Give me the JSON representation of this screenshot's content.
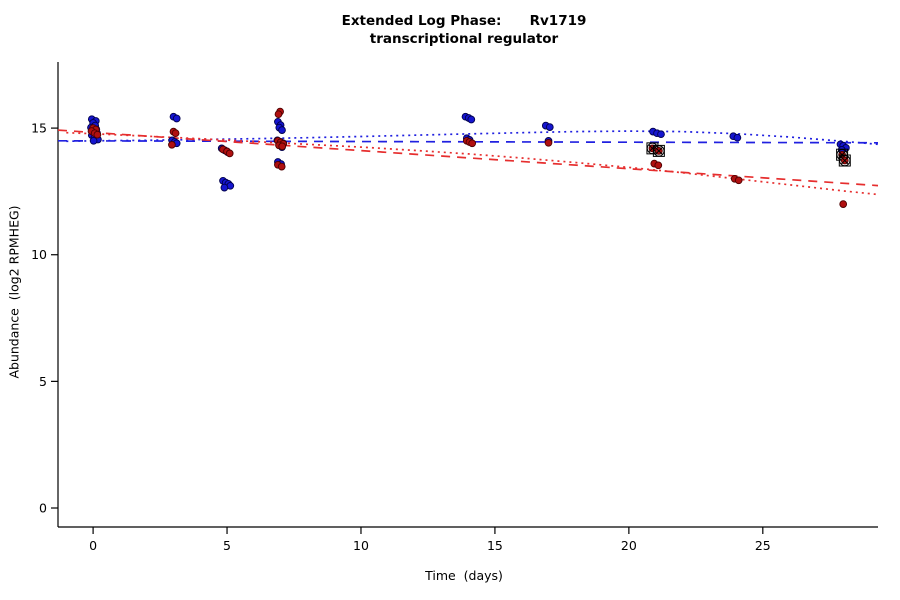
{
  "chart_data": {
    "type": "scatter",
    "title": "Extended Log Phase:      Rv1719",
    "subtitle": "transcriptional regulator",
    "xlabel": "Time  (days)",
    "ylabel": "Abundance  (log2 RPMHEG)",
    "xlim": [
      -1.31,
      29.3
    ],
    "ylim": [
      -0.75,
      17.61
    ],
    "x_ticks": [
      0,
      5,
      10,
      15,
      20,
      25
    ],
    "y_ticks": [
      0,
      5,
      10,
      15
    ],
    "grid": false,
    "legend": "none",
    "colors": {
      "blue_point_fill": "#1515cf",
      "blue_point_stroke": "#00004d",
      "red_point_fill": "#b01010",
      "red_point_stroke": "#4d0000",
      "blue_line": "#2020e0",
      "red_line": "#e62e2e",
      "flag_marker": "#000000"
    },
    "series": [
      {
        "name": "condition-blue",
        "color": "#1515cf",
        "stroke": "#00004d",
        "points": [
          [
            -0.05,
            15.35
          ],
          [
            0.1,
            15.28
          ],
          [
            0,
            15.2
          ],
          [
            0.08,
            15.1
          ],
          [
            -0.08,
            15.02
          ],
          [
            0.12,
            14.95
          ],
          [
            0,
            14.88
          ],
          [
            0.15,
            14.8
          ],
          [
            -0.05,
            14.72
          ],
          [
            0.05,
            14.62
          ],
          [
            0.18,
            14.55
          ],
          [
            0.02,
            14.5
          ],
          [
            3,
            15.45
          ],
          [
            3.12,
            15.38
          ],
          [
            2.95,
            14.52
          ],
          [
            3.05,
            14.45
          ],
          [
            3.12,
            14.4
          ],
          [
            4.8,
            14.2
          ],
          [
            4.92,
            14.12
          ],
          [
            5.02,
            14.05
          ],
          [
            4.85,
            12.92
          ],
          [
            4.95,
            12.85
          ],
          [
            5.05,
            12.8
          ],
          [
            5.12,
            12.72
          ],
          [
            4.9,
            12.65
          ],
          [
            6.9,
            15.25
          ],
          [
            7,
            15.12
          ],
          [
            6.95,
            15.02
          ],
          [
            7.05,
            14.92
          ],
          [
            6.88,
            14.52
          ],
          [
            7,
            14.46
          ],
          [
            7.1,
            14.4
          ],
          [
            6.95,
            14.32
          ],
          [
            7.05,
            14.25
          ],
          [
            6.9,
            13.66
          ],
          [
            7.02,
            13.58
          ],
          [
            13.9,
            15.45
          ],
          [
            14.02,
            15.4
          ],
          [
            14.12,
            15.34
          ],
          [
            13.95,
            14.6
          ],
          [
            14.05,
            14.54
          ],
          [
            16.9,
            15.1
          ],
          [
            17.05,
            15.04
          ],
          [
            17,
            14.5
          ],
          [
            20.9,
            14.86
          ],
          [
            21.05,
            14.8
          ],
          [
            21.2,
            14.76
          ],
          [
            23.9,
            14.68
          ],
          [
            24.05,
            14.62
          ],
          [
            27.9,
            14.36
          ],
          [
            28,
            14.3
          ],
          [
            28.1,
            14.22
          ],
          [
            27.95,
            14.14
          ]
        ]
      },
      {
        "name": "condition-red",
        "color": "#b01010",
        "stroke": "#4d0000",
        "points": [
          [
            0,
            15.0
          ],
          [
            0.1,
            14.94
          ],
          [
            -0.06,
            14.88
          ],
          [
            0.06,
            14.8
          ],
          [
            0.16,
            14.74
          ],
          [
            3,
            14.86
          ],
          [
            3.08,
            14.8
          ],
          [
            2.94,
            14.34
          ],
          [
            4.85,
            14.16
          ],
          [
            5,
            14.08
          ],
          [
            5.1,
            14.0
          ],
          [
            6.98,
            15.65
          ],
          [
            6.92,
            15.55
          ],
          [
            6.9,
            14.5
          ],
          [
            7,
            14.44
          ],
          [
            7.1,
            14.38
          ],
          [
            6.94,
            14.32
          ],
          [
            7.06,
            14.28
          ],
          [
            6.9,
            13.55
          ],
          [
            7.04,
            13.48
          ],
          [
            13.95,
            14.5
          ],
          [
            14.05,
            14.45
          ],
          [
            14.15,
            14.4
          ],
          [
            17,
            14.42
          ],
          [
            20.95,
            13.6
          ],
          [
            21.1,
            13.53
          ],
          [
            23.95,
            13.0
          ],
          [
            24.1,
            12.94
          ],
          [
            28,
            12.0
          ]
        ]
      }
    ],
    "flagged_points": {
      "description": "red points flagged with open square and circled-X outlier markers",
      "points": [
        [
          20.88,
          14.2
        ],
        [
          21.12,
          14.1
        ],
        [
          27.96,
          13.95
        ],
        [
          28.06,
          13.72
        ]
      ]
    },
    "lines": [
      {
        "name": "blue-trend-dashed",
        "style": "dashed",
        "color": "#2020e0",
        "points": [
          [
            -1.31,
            14.5
          ],
          [
            29.3,
            14.42
          ]
        ]
      },
      {
        "name": "blue-trend-dotted",
        "style": "dotted",
        "color": "#2020e0",
        "points": [
          [
            -1,
            14.48
          ],
          [
            0,
            14.5
          ],
          [
            2,
            14.52
          ],
          [
            4,
            14.55
          ],
          [
            6,
            14.58
          ],
          [
            8,
            14.62
          ],
          [
            10,
            14.67
          ],
          [
            12,
            14.72
          ],
          [
            14,
            14.77
          ],
          [
            16,
            14.82
          ],
          [
            18,
            14.86
          ],
          [
            20,
            14.88
          ],
          [
            22,
            14.86
          ],
          [
            24,
            14.78
          ],
          [
            26,
            14.65
          ],
          [
            28,
            14.48
          ],
          [
            29.3,
            14.36
          ]
        ]
      },
      {
        "name": "red-trend-dashed",
        "style": "dashed",
        "color": "#e62e2e",
        "points": [
          [
            -1.31,
            14.92
          ],
          [
            29.3,
            12.73
          ]
        ]
      },
      {
        "name": "red-trend-dotted",
        "style": "dotted",
        "color": "#e62e2e",
        "points": [
          [
            -1,
            14.82
          ],
          [
            0,
            14.78
          ],
          [
            2,
            14.68
          ],
          [
            4,
            14.58
          ],
          [
            6,
            14.47
          ],
          [
            8,
            14.36
          ],
          [
            10,
            14.25
          ],
          [
            12,
            14.12
          ],
          [
            14,
            13.98
          ],
          [
            16,
            13.82
          ],
          [
            18,
            13.64
          ],
          [
            20,
            13.45
          ],
          [
            22,
            13.24
          ],
          [
            24,
            13.0
          ],
          [
            26,
            12.76
          ],
          [
            28,
            12.52
          ],
          [
            29.3,
            12.38
          ]
        ]
      }
    ]
  }
}
